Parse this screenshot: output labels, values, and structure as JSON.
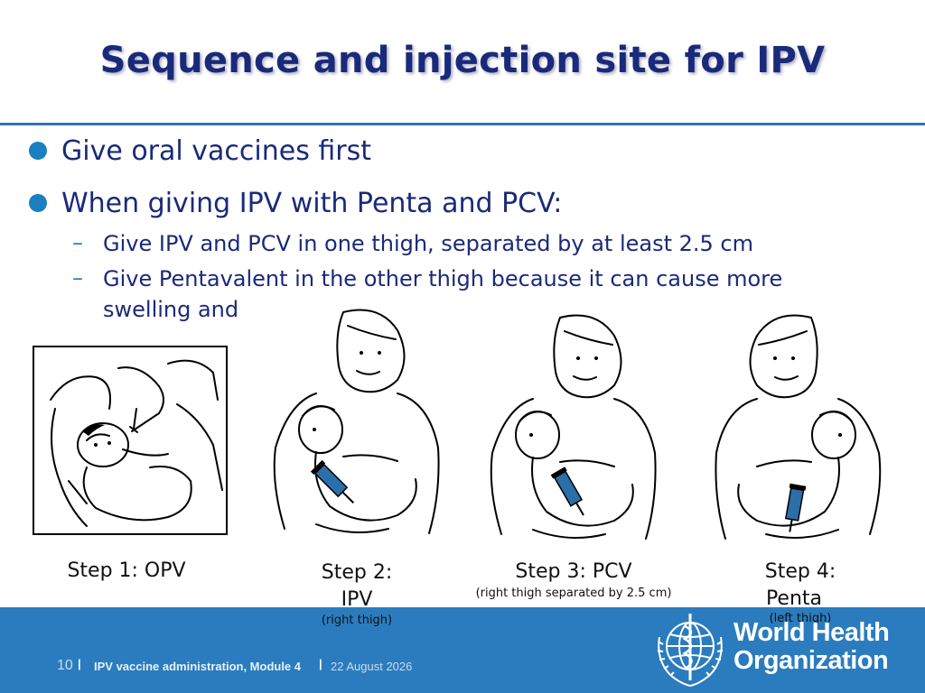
{
  "slide": {
    "title": "Sequence and injection site for IPV",
    "bullets": [
      "Give oral vaccines first",
      "When giving IPV with Penta and PCV:"
    ],
    "sub_bullets": [
      "Give IPV and PCV in one thigh,  separated by at least 2.5 cm",
      "Give Pentavalent in the other thigh because it can cause more",
      "swelling and"
    ],
    "dash": "–"
  },
  "steps": [
    {
      "label": "Step 1: OPV",
      "note": ""
    },
    {
      "label_line1": "Step 2:",
      "label_line2": "IPV",
      "note": "(right thigh)"
    },
    {
      "label": "Step 3: PCV",
      "note": "(right thigh separated by 2.5 cm)"
    },
    {
      "label_line1": "Step 4:",
      "label_line2": "Penta",
      "note": "(left thigh)"
    }
  ],
  "footer": {
    "page": "10",
    "sep": "|",
    "course": "IPV vaccine administration, Module 4",
    "date": "22 August 2026",
    "org_line1": "World Health",
    "org_line2": "Organization"
  },
  "colors": {
    "title": "#1a2a7a",
    "accent": "#1a7fc0",
    "footer": "#2a7cbe"
  }
}
